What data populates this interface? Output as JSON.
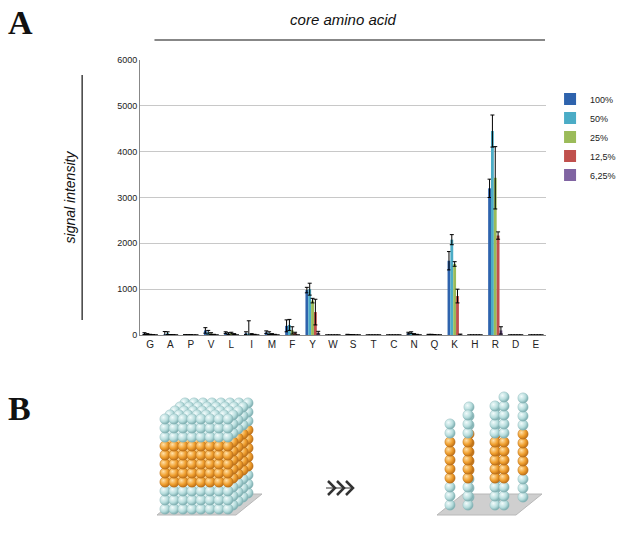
{
  "chart_data": {
    "type": "bar",
    "title": "core amino acid",
    "y_label": "signal intensity",
    "categories": [
      "G",
      "A",
      "P",
      "V",
      "L",
      "I",
      "M",
      "F",
      "Y",
      "W",
      "S",
      "T",
      "C",
      "N",
      "Q",
      "K",
      "H",
      "R",
      "D",
      "E"
    ],
    "series": [
      {
        "name": "100%",
        "color": "#2e63ad",
        "values": [
          30,
          15,
          5,
          100,
          50,
          40,
          60,
          200,
          980,
          0,
          10,
          0,
          0,
          40,
          10,
          1620,
          0,
          3200,
          0,
          0
        ],
        "errors": [
          20,
          60,
          0,
          60,
          20,
          30,
          30,
          130,
          60,
          0,
          5,
          0,
          0,
          20,
          5,
          200,
          0,
          200,
          0,
          0
        ]
      },
      {
        "name": "50%",
        "color": "#4bacc6",
        "values": [
          20,
          40,
          5,
          60,
          30,
          30,
          40,
          220,
          1000,
          0,
          5,
          0,
          0,
          50,
          10,
          2080,
          0,
          4450,
          0,
          0
        ],
        "errors": [
          10,
          30,
          0,
          40,
          20,
          280,
          30,
          120,
          130,
          0,
          5,
          0,
          0,
          20,
          5,
          110,
          0,
          350,
          0,
          0
        ]
      },
      {
        "name": "25%",
        "color": "#9bbb59",
        "values": [
          10,
          5,
          5,
          30,
          40,
          20,
          20,
          100,
          750,
          0,
          5,
          0,
          0,
          20,
          5,
          1550,
          0,
          3430,
          0,
          0
        ],
        "errors": [
          5,
          5,
          0,
          20,
          20,
          10,
          10,
          80,
          50,
          0,
          0,
          0,
          0,
          10,
          5,
          50,
          0,
          680,
          0,
          0
        ]
      },
      {
        "name": "12,5%",
        "color": "#c0504d",
        "values": [
          5,
          5,
          0,
          10,
          20,
          10,
          10,
          40,
          500,
          0,
          0,
          0,
          0,
          10,
          0,
          850,
          0,
          2170,
          0,
          0
        ],
        "errors": [
          0,
          0,
          0,
          5,
          10,
          5,
          5,
          20,
          280,
          0,
          0,
          0,
          0,
          5,
          0,
          150,
          0,
          80,
          0,
          0
        ]
      },
      {
        "name": "6,25%",
        "color": "#8064a2",
        "values": [
          0,
          0,
          0,
          0,
          0,
          0,
          0,
          0,
          50,
          0,
          0,
          0,
          0,
          0,
          0,
          10,
          0,
          100,
          0,
          0
        ],
        "errors": [
          0,
          0,
          0,
          0,
          0,
          0,
          0,
          0,
          30,
          0,
          0,
          0,
          0,
          0,
          0,
          10,
          0,
          80,
          0,
          0
        ]
      }
    ],
    "ylim": [
      0,
      6000
    ],
    "yticks": [
      0,
      1000,
      2000,
      3000,
      4000,
      5000,
      6000
    ],
    "grid": true,
    "legend": "right"
  },
  "panel_labels": [
    "A",
    "B"
  ]
}
